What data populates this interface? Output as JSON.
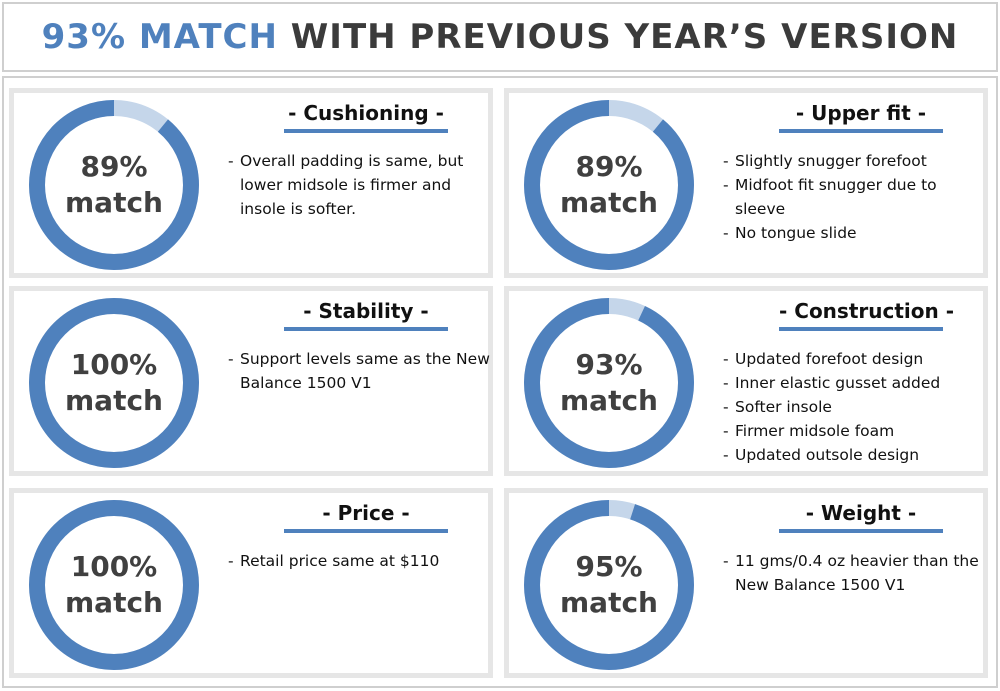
{
  "title": {
    "highlight": "93% MATCH",
    "rest": " WITH PREVIOUS YEAR’S VERSION"
  },
  "colors": {
    "accent": "#4f81bd",
    "ring_remainder": "#c5d6ea",
    "card_border": "#e6e6e6",
    "label_text": "#404040"
  },
  "cards": [
    {
      "heading": "- Cushioning -",
      "percent_label": "89%",
      "match_label": "match",
      "notes": [
        "Overall padding is same, but lower midsole is firmer and insole is softer."
      ]
    },
    {
      "heading": "- Upper fit -",
      "percent_label": "89%",
      "match_label": "match",
      "notes": [
        "Slightly snugger forefoot",
        "Midfoot fit snugger due to sleeve",
        "No tongue slide"
      ]
    },
    {
      "heading": "- Stability -",
      "percent_label": "100%",
      "match_label": "match",
      "notes": [
        "Support levels same as the New Balance 1500 V1"
      ]
    },
    {
      "heading": "- Construction -",
      "percent_label": "93%",
      "match_label": "match",
      "notes": [
        "Updated forefoot design",
        "Inner elastic gusset added",
        "Softer insole",
        "Firmer midsole foam",
        "Updated outsole design"
      ]
    },
    {
      "heading": "- Price -",
      "percent_label": "100%",
      "match_label": "match",
      "notes": [
        " Retail price same at $110"
      ]
    },
    {
      "heading": "- Weight -",
      "percent_label": "95%",
      "match_label": "match",
      "notes": [
        "11 gms/0.4 oz heavier than the New Balance 1500 V1"
      ]
    }
  ],
  "chart_data": {
    "type": "pie",
    "style": "donut",
    "categories": [
      "Cushioning",
      "Upper fit",
      "Stability",
      "Construction",
      "Price",
      "Weight"
    ],
    "values": [
      89,
      89,
      100,
      93,
      100,
      95
    ],
    "unit": "%",
    "max": 100
  }
}
